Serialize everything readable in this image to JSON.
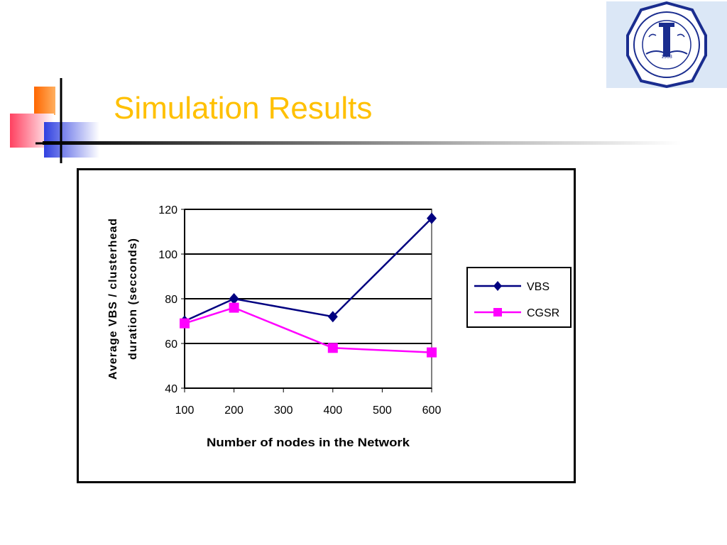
{
  "slide": {
    "title": "Simulation Results",
    "title_color": "#ffc000",
    "logo_icon": "university-seal-logo"
  },
  "chart_data": {
    "type": "line",
    "title": "",
    "xlabel": "Number of nodes in the Network",
    "ylabel": "Average VBS / clusterhead duration (secconds)",
    "ylabel_lines": [
      "Average VBS / clusterhead",
      "duration (secconds)"
    ],
    "x_ticks": [
      100,
      200,
      300,
      400,
      500,
      600
    ],
    "y_ticks": [
      40,
      60,
      80,
      100,
      120
    ],
    "xlim": [
      100,
      600
    ],
    "ylim": [
      40,
      120
    ],
    "grid": "horizontal",
    "legend_position": "right",
    "series": [
      {
        "name": "VBS",
        "color": "#000080",
        "marker": "diamond",
        "x": [
          100,
          200,
          400,
          600
        ],
        "y": [
          70,
          80,
          72,
          116
        ]
      },
      {
        "name": "CGSR",
        "color": "#ff00ff",
        "marker": "square",
        "x": [
          100,
          200,
          400,
          600
        ],
        "y": [
          69,
          76,
          58,
          56
        ]
      }
    ]
  }
}
